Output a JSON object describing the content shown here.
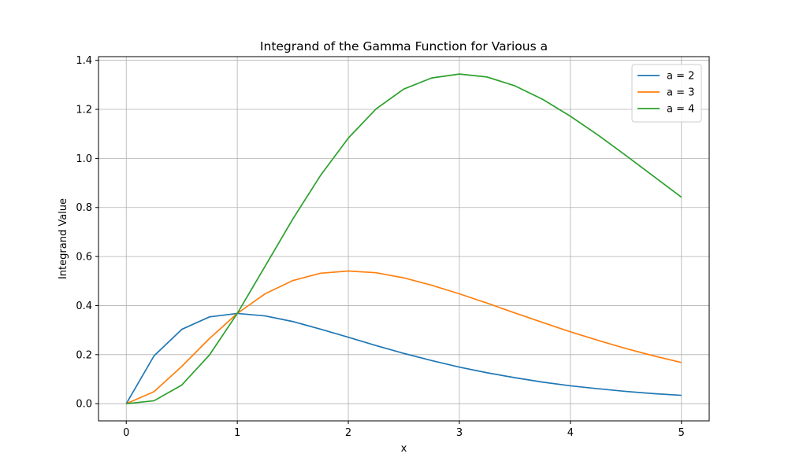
{
  "chart_data": {
    "type": "line",
    "title": "Integrand of the Gamma Function for Various a",
    "xlabel": "x",
    "ylabel": "Integrand Value",
    "xlim": [
      -0.25,
      5.25
    ],
    "ylim": [
      -0.07,
      1.415
    ],
    "xticks": [
      0,
      1,
      2,
      3,
      4,
      5
    ],
    "xtick_labels": [
      "0",
      "1",
      "2",
      "3",
      "4",
      "5"
    ],
    "yticks": [
      0.0,
      0.2,
      0.4,
      0.6,
      0.8,
      1.0,
      1.2,
      1.4
    ],
    "ytick_labels": [
      "0.0",
      "0.2",
      "0.4",
      "0.6",
      "0.8",
      "1.0",
      "1.2",
      "1.4"
    ],
    "grid": true,
    "legend_position": "top-right",
    "x": [
      0,
      0.25,
      0.5,
      0.75,
      1.0,
      1.25,
      1.5,
      1.75,
      2.0,
      2.25,
      2.5,
      2.75,
      3.0,
      3.25,
      3.5,
      3.75,
      4.0,
      4.25,
      4.5,
      4.75,
      5.0
    ],
    "series": [
      {
        "name": "a = 2",
        "color": "#1f77b4",
        "values": [
          0.0,
          0.195,
          0.303,
          0.354,
          0.368,
          0.358,
          0.335,
          0.304,
          0.271,
          0.237,
          0.205,
          0.176,
          0.149,
          0.126,
          0.106,
          0.088,
          0.073,
          0.061,
          0.05,
          0.041,
          0.034
        ]
      },
      {
        "name": "a = 3",
        "color": "#ff7f0e",
        "values": [
          0.0,
          0.049,
          0.152,
          0.266,
          0.368,
          0.448,
          0.502,
          0.532,
          0.541,
          0.534,
          0.513,
          0.483,
          0.448,
          0.41,
          0.37,
          0.331,
          0.293,
          0.258,
          0.225,
          0.195,
          0.168
        ]
      },
      {
        "name": "a = 4",
        "color": "#2ca02c",
        "values": [
          0.0,
          0.012,
          0.076,
          0.199,
          0.368,
          0.56,
          0.753,
          0.931,
          1.083,
          1.202,
          1.283,
          1.328,
          1.344,
          1.332,
          1.296,
          1.241,
          1.172,
          1.095,
          1.012,
          0.927,
          0.842
        ]
      }
    ]
  }
}
